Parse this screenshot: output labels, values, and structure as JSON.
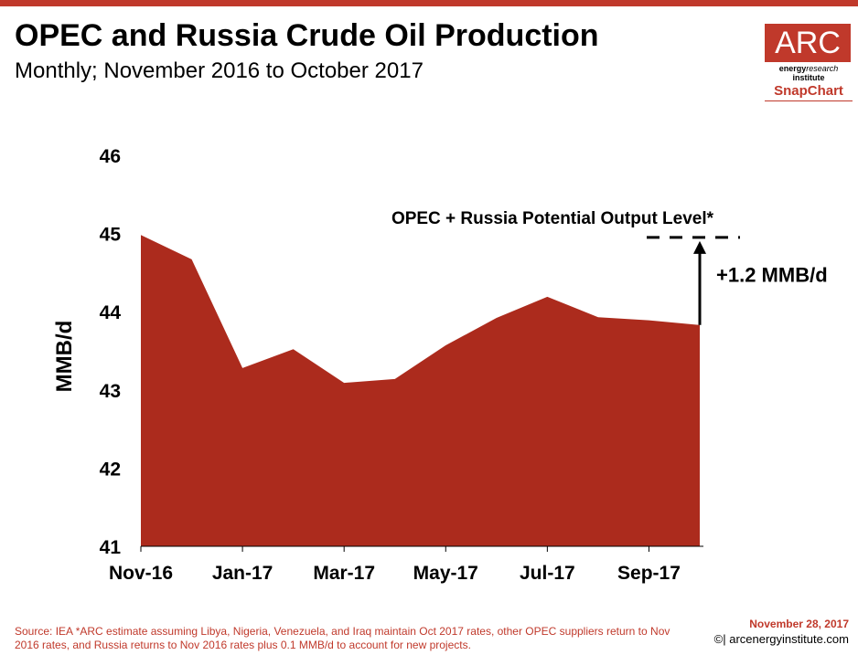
{
  "header": {
    "title": "OPEC and Russia Crude Oil Production",
    "subtitle": "Monthly; November 2016 to October 2017"
  },
  "logo": {
    "brand": "ARC",
    "line1_bold": "energy",
    "line1_light": "research",
    "line2": "institute",
    "product": "SnapChart"
  },
  "chart_data": {
    "type": "area",
    "title": "OPEC and Russia Crude Oil Production",
    "ylabel": "MMB/d",
    "xlabel": "",
    "ylim": [
      41,
      46
    ],
    "yticks": [
      41,
      42,
      43,
      44,
      45,
      46
    ],
    "x": [
      "Nov-16",
      "Dec-16",
      "Jan-17",
      "Feb-17",
      "Mar-17",
      "Apr-17",
      "May-17",
      "Jun-17",
      "Jul-17",
      "Aug-17",
      "Sep-17",
      "Oct-17"
    ],
    "xtick_labels": [
      "Nov-16",
      "Jan-17",
      "Mar-17",
      "May-17",
      "Jul-17",
      "Sep-17"
    ],
    "series": [
      {
        "name": "",
        "values": [
          44.98,
          44.67,
          43.28,
          43.52,
          43.09,
          43.14,
          43.57,
          43.92,
          44.19,
          43.93,
          43.89,
          43.83
        ]
      }
    ],
    "potential_level": {
      "label": "OPEC + Russia Potential Output Level*",
      "value": 44.95
    },
    "gap_annotation": "+1.2 MMB/d",
    "fill_color": "#ac2b1d",
    "grid": false
  },
  "footer": {
    "source": "Source: IEA  *ARC estimate assuming Libya, Nigeria, Venezuela, and Iraq maintain Oct 2017 rates, other OPEC suppliers return to Nov 2016 rates, and Russia returns to Nov 2016 rates plus 0.1 MMB/d to account for new projects.",
    "date": "November 28, 2017",
    "site": "©| arcenergyinstitute.com"
  }
}
